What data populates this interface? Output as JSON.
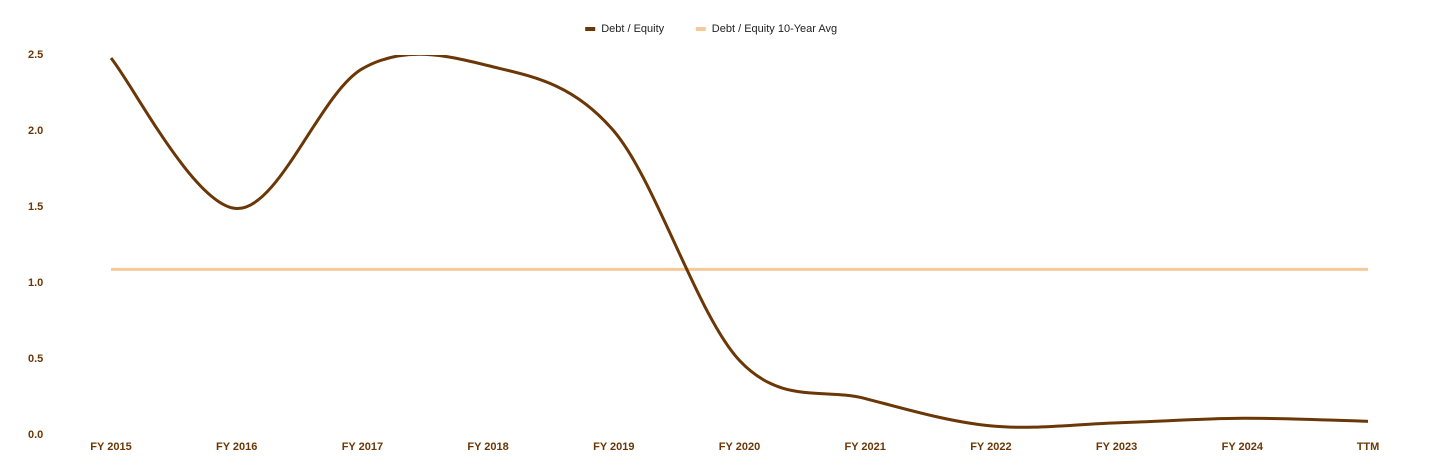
{
  "chart_data": {
    "type": "line",
    "categories": [
      "FY 2015",
      "FY 2016",
      "FY 2017",
      "FY 2018",
      "FY 2019",
      "FY 2020",
      "FY 2021",
      "FY 2022",
      "FY 2023",
      "FY 2024",
      "TTM"
    ],
    "series": [
      {
        "name": "Debt / Equity",
        "color": "#6b3706",
        "values": [
          2.48,
          1.49,
          2.41,
          2.43,
          2.0,
          0.49,
          0.24,
          0.06,
          0.08,
          0.11,
          0.09
        ]
      },
      {
        "name": "Debt / Equity 10-Year Avg",
        "color": "#f6c99b",
        "values": [
          1.09,
          1.09,
          1.09,
          1.09,
          1.09,
          1.09,
          1.09,
          1.09,
          1.09,
          1.09,
          1.09
        ]
      }
    ],
    "ylim": [
      0,
      2.5
    ],
    "yticks": [
      {
        "value": 0,
        "label": "0.0"
      },
      0.5,
      {
        "value": 1,
        "label": "1.0"
      },
      1.5,
      {
        "value": 2,
        "label": "2.0"
      },
      2.5
    ],
    "grid": false,
    "smooth": true,
    "legend": "top"
  }
}
